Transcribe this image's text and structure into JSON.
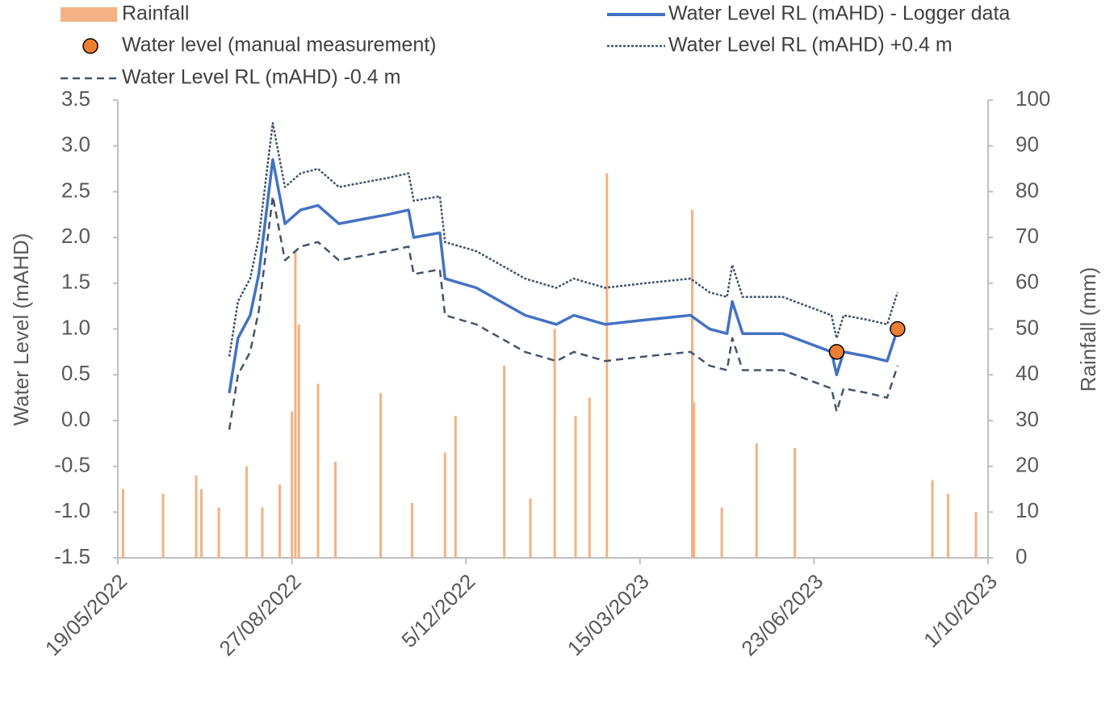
{
  "chart_data": {
    "type": "combo",
    "ylabel": "Water Level (mAHD)",
    "y2label": "Rainfall (mm)",
    "xlim": [
      "2022-05-19",
      "2023-10-01"
    ],
    "xticks": [
      {
        "value": "2022-05-19",
        "label": "19/05/2022"
      },
      {
        "value": "2022-08-27",
        "label": "27/08/2022"
      },
      {
        "value": "2022-12-05",
        "label": "5/12/2022"
      },
      {
        "value": "2023-03-15",
        "label": "15/03/2023"
      },
      {
        "value": "2023-06-23",
        "label": "23/06/2023"
      },
      {
        "value": "2023-10-01",
        "label": "1/10/2023"
      }
    ],
    "ylim": [
      -1.5,
      3.5
    ],
    "yticks": [
      {
        "value": -1.5,
        "label": "-1.5"
      },
      {
        "value": -1,
        "label": "-1.0"
      },
      -0.5,
      {
        "value": 0,
        "label": "0.0"
      },
      0.5,
      {
        "value": 1,
        "label": "1.0"
      },
      1.5,
      {
        "value": 2,
        "label": "2.0"
      },
      2.5,
      {
        "value": 3,
        "label": "3.0"
      },
      3.5
    ],
    "y2lim": [
      0,
      100
    ],
    "y2ticks": [
      0,
      10,
      20,
      30,
      40,
      50,
      60,
      70,
      80,
      90,
      100
    ],
    "series": [
      {
        "name": "Rainfall",
        "type": "bar",
        "axis": "y2",
        "color": "#f4b183",
        "x": [
          "2022-05-22",
          "2022-06-14",
          "2022-07-03",
          "2022-07-06",
          "2022-07-16",
          "2022-08-01",
          "2022-08-10",
          "2022-08-20",
          "2022-08-27",
          "2022-08-29",
          "2022-08-31",
          "2022-09-11",
          "2022-09-21",
          "2022-10-17",
          "2022-11-04",
          "2022-11-23",
          "2022-11-29",
          "2022-12-27",
          "2023-01-11",
          "2023-01-25",
          "2023-02-06",
          "2023-02-14",
          "2023-02-24",
          "2023-04-14",
          "2023-04-15",
          "2023-05-01",
          "2023-05-21",
          "2023-06-12",
          "2023-08-30",
          "2023-09-08",
          "2023-09-24"
        ],
        "values": [
          15,
          14,
          18,
          15,
          11,
          20,
          11,
          16,
          32,
          67,
          51,
          38,
          21,
          36,
          12,
          23,
          31,
          42,
          13,
          50,
          31,
          35,
          84,
          76,
          34,
          11,
          25,
          24,
          17,
          14,
          10
        ]
      },
      {
        "name": "Water Level RL (mAHD) - Logger data",
        "type": "line",
        "color": "#4472c4",
        "x": [
          "2022-07-22",
          "2022-07-27",
          "2022-08-03",
          "2022-08-08",
          "2022-08-16",
          "2022-08-23",
          "2022-09-01",
          "2022-09-11",
          "2022-09-23",
          "2022-10-07",
          "2022-10-21",
          "2022-11-02",
          "2022-11-05",
          "2022-11-20",
          "2022-11-23",
          "2022-12-11",
          "2022-12-25",
          "2023-01-08",
          "2023-01-26",
          "2023-02-05",
          "2023-02-23",
          "2023-03-18",
          "2023-04-13",
          "2023-04-24",
          "2023-05-04",
          "2023-05-07",
          "2023-05-13",
          "2023-06-05",
          "2023-06-19",
          "2023-07-03",
          "2023-07-06",
          "2023-07-10",
          "2023-07-24",
          "2023-08-04",
          "2023-08-10"
        ],
        "values": [
          0.3,
          0.9,
          1.15,
          1.6,
          2.85,
          2.15,
          2.3,
          2.35,
          2.15,
          2.2,
          2.25,
          2.3,
          2.0,
          2.05,
          1.55,
          1.45,
          1.3,
          1.15,
          1.05,
          1.15,
          1.05,
          1.1,
          1.15,
          1.0,
          0.95,
          1.3,
          0.95,
          0.95,
          0.85,
          0.75,
          0.5,
          0.75,
          0.7,
          0.65,
          1.0
        ]
      },
      {
        "name": "Water level (manual measurement)",
        "type": "scatter",
        "color": "#ed7d31",
        "x": [
          "2023-07-06",
          "2023-08-10"
        ],
        "values": [
          0.75,
          1.0
        ]
      },
      {
        "name": "Water Level RL (mAHD) +0.4 m",
        "type": "line",
        "color": "#44546a",
        "dash": "3 2",
        "x": [
          "2022-07-22",
          "2022-07-27",
          "2022-08-03",
          "2022-08-08",
          "2022-08-16",
          "2022-08-23",
          "2022-09-01",
          "2022-09-11",
          "2022-09-23",
          "2022-10-07",
          "2022-10-21",
          "2022-11-02",
          "2022-11-05",
          "2022-11-20",
          "2022-11-23",
          "2022-12-11",
          "2022-12-25",
          "2023-01-08",
          "2023-01-26",
          "2023-02-05",
          "2023-02-23",
          "2023-03-18",
          "2023-04-13",
          "2023-04-24",
          "2023-05-04",
          "2023-05-07",
          "2023-05-13",
          "2023-06-05",
          "2023-06-19",
          "2023-07-03",
          "2023-07-06",
          "2023-07-10",
          "2023-07-24",
          "2023-08-04",
          "2023-08-10"
        ],
        "values": [
          0.7,
          1.3,
          1.55,
          2.0,
          3.25,
          2.55,
          2.7,
          2.75,
          2.55,
          2.6,
          2.65,
          2.7,
          2.4,
          2.45,
          1.95,
          1.85,
          1.7,
          1.55,
          1.45,
          1.55,
          1.45,
          1.5,
          1.55,
          1.4,
          1.35,
          1.7,
          1.35,
          1.35,
          1.25,
          1.15,
          0.9,
          1.15,
          1.1,
          1.05,
          1.4
        ]
      },
      {
        "name": "Water Level RL (mAHD) -0.4 m",
        "type": "line",
        "color": "#44546a",
        "dash": "9 6",
        "x": [
          "2022-07-22",
          "2022-07-27",
          "2022-08-03",
          "2022-08-08",
          "2022-08-16",
          "2022-08-23",
          "2022-09-01",
          "2022-09-11",
          "2022-09-23",
          "2022-10-07",
          "2022-10-21",
          "2022-11-02",
          "2022-11-05",
          "2022-11-20",
          "2022-11-23",
          "2022-12-11",
          "2022-12-25",
          "2023-01-08",
          "2023-01-26",
          "2023-02-05",
          "2023-02-23",
          "2023-03-18",
          "2023-04-13",
          "2023-04-24",
          "2023-05-04",
          "2023-05-07",
          "2023-05-13",
          "2023-06-05",
          "2023-06-19",
          "2023-07-03",
          "2023-07-06",
          "2023-07-10",
          "2023-07-24",
          "2023-08-04",
          "2023-08-10"
        ],
        "values": [
          -0.1,
          0.5,
          0.75,
          1.2,
          2.45,
          1.75,
          1.9,
          1.95,
          1.75,
          1.8,
          1.85,
          1.9,
          1.6,
          1.65,
          1.15,
          1.05,
          0.9,
          0.75,
          0.65,
          0.75,
          0.65,
          0.7,
          0.75,
          0.6,
          0.55,
          0.9,
          0.55,
          0.55,
          0.45,
          0.35,
          0.1,
          0.35,
          0.3,
          0.25,
          0.6
        ]
      }
    ]
  }
}
